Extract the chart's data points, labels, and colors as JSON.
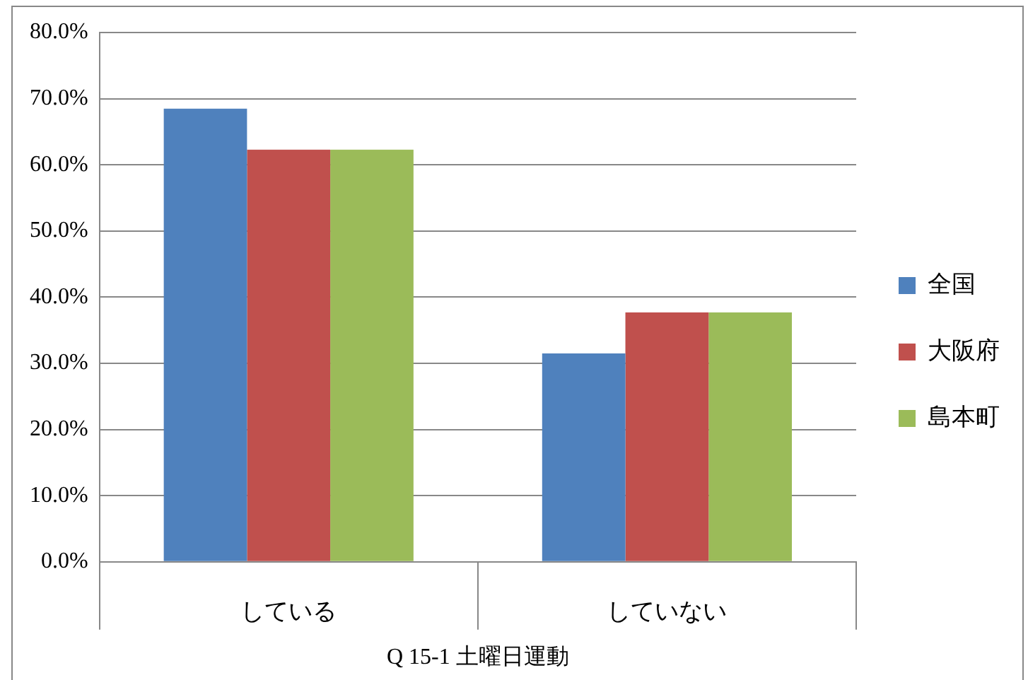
{
  "chart_data": {
    "type": "bar",
    "xlabel": "Q 15-1 土曜日運動",
    "categories": [
      "している",
      "していない"
    ],
    "series": [
      {
        "name": "全国",
        "color": "#4f81bd",
        "values": [
          68.5,
          31.5
        ]
      },
      {
        "name": "大阪府",
        "color": "#c0504d",
        "values": [
          62.3,
          37.7
        ]
      },
      {
        "name": "島本町",
        "color": "#9bbb59",
        "values": [
          62.3,
          37.7
        ]
      }
    ],
    "ylim": [
      0,
      80
    ],
    "yticks": [
      {
        "value": 0,
        "label": "0.0%"
      },
      {
        "value": 10,
        "label": "10.0%"
      },
      {
        "value": 20,
        "label": "20.0%"
      },
      {
        "value": 30,
        "label": "30.0%"
      },
      {
        "value": 40,
        "label": "40.0%"
      },
      {
        "value": 50,
        "label": "50.0%"
      },
      {
        "value": 60,
        "label": "60.0%"
      },
      {
        "value": 70,
        "label": "70.0%"
      },
      {
        "value": 80,
        "label": "80.0%"
      }
    ],
    "grid": "y",
    "legend": "right"
  }
}
